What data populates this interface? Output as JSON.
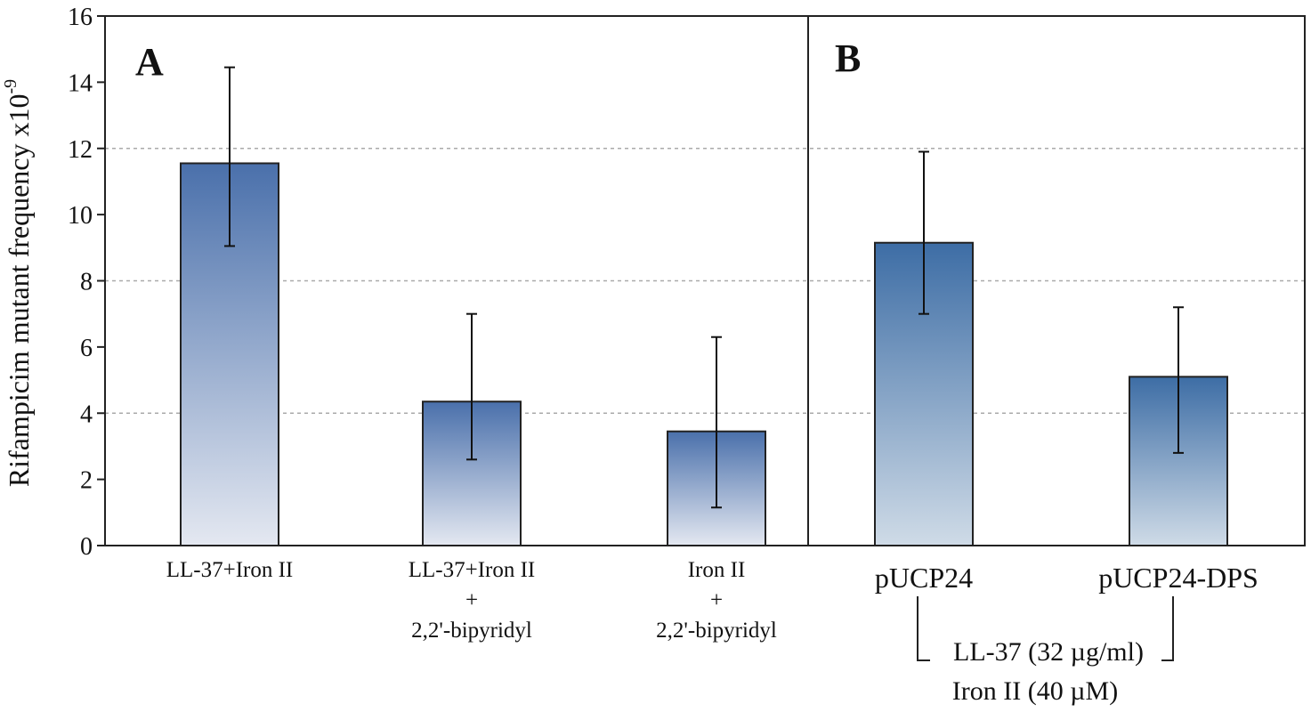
{
  "chart_data": {
    "type": "bar",
    "ylabel": "Rifampicim mutant frequency x10",
    "ylabel_exponent": "-9",
    "ylim": [
      0,
      16
    ],
    "yticks": [
      "0",
      "2",
      "4",
      "6",
      "8",
      "10",
      "12",
      "14",
      "16"
    ],
    "grid": "horizontal dashed at 4, 8, 12",
    "panels": [
      {
        "label": "A",
        "bar_color_top": "#4a70ab",
        "bar_color_bottom": "#e4e8f1",
        "categories": [
          [
            "LL-37+Iron II"
          ],
          [
            "LL-37+Iron II",
            "+",
            "2,2'-bipyridyl"
          ],
          [
            "Iron II",
            "+",
            "2,2'-bipyridyl"
          ]
        ],
        "values": [
          11.55,
          4.35,
          3.45
        ],
        "error_low": [
          9.05,
          2.6,
          1.15
        ],
        "error_high": [
          14.45,
          7.0,
          6.3
        ]
      },
      {
        "label": "B",
        "bar_color_top": "#3d6da5",
        "bar_color_bottom": "#cfdbe7",
        "categories": [
          [
            "pUCP24"
          ],
          [
            "pUCP24-DPS"
          ]
        ],
        "values": [
          9.15,
          5.1
        ],
        "error_low": [
          7.0,
          2.8
        ],
        "error_high": [
          11.9,
          7.2
        ]
      }
    ],
    "annotations": [
      "LL-37 (32 µg/ml)",
      "Iron II (40 µM)"
    ]
  }
}
